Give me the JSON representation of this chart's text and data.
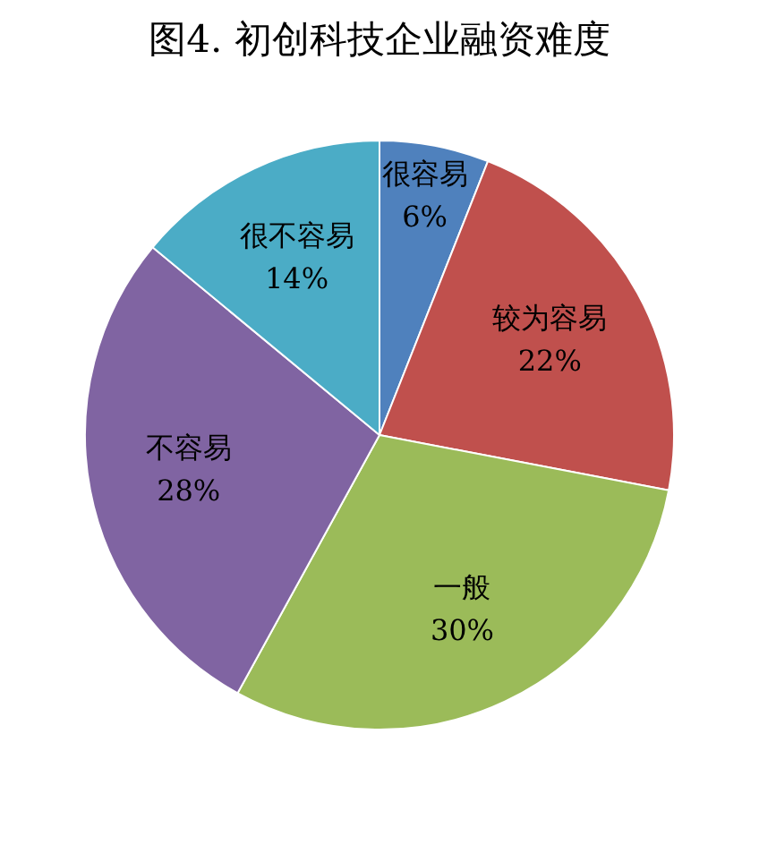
{
  "chart_data": {
    "type": "pie",
    "title": "图4. 初创科技企业融资难度",
    "categories": [
      "很容易",
      "较为容易",
      "一般",
      "不容易",
      "很不容易"
    ],
    "values": [
      6,
      22,
      30,
      28,
      14
    ],
    "colors": [
      "#4f81bd",
      "#c0504d",
      "#9bbb59",
      "#8064a2",
      "#4bacc6"
    ],
    "value_labels": [
      "6%",
      "22%",
      "30%",
      "28%",
      "14%"
    ],
    "legend": false
  }
}
